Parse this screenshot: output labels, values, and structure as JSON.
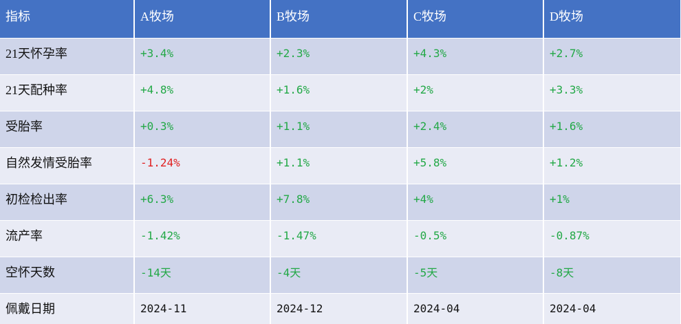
{
  "table": {
    "header": [
      "指标",
      "A牧场",
      "B牧场",
      "C牧场",
      "D牧场"
    ],
    "rows": [
      [
        "21天怀孕率",
        "+3.4%",
        "+2.3%",
        "+4.3%",
        "+2.7%"
      ],
      [
        "21天配种率",
        "+4.8%",
        "+1.6%",
        "+2%",
        "+3.3%"
      ],
      [
        "受胎率",
        "+0.3%",
        "+1.1%",
        "+2.4%",
        "+1.6%"
      ],
      [
        "自然发情受胎率",
        "-1.24%",
        "+1.1%",
        "+5.8%",
        "+1.2%"
      ],
      [
        "初检检出率",
        "+6.3%",
        "+7.8%",
        "+4%",
        "+1%"
      ],
      [
        "流产率",
        "-1.42%",
        "-1.47%",
        "-0.5%",
        "-0.87%"
      ],
      [
        "空怀天数",
        "-14天",
        "-4天",
        "-5天",
        "-8天"
      ],
      [
        "佩戴日期",
        "2024-11",
        "2024-12",
        "2024-04",
        "2024-04"
      ]
    ]
  }
}
